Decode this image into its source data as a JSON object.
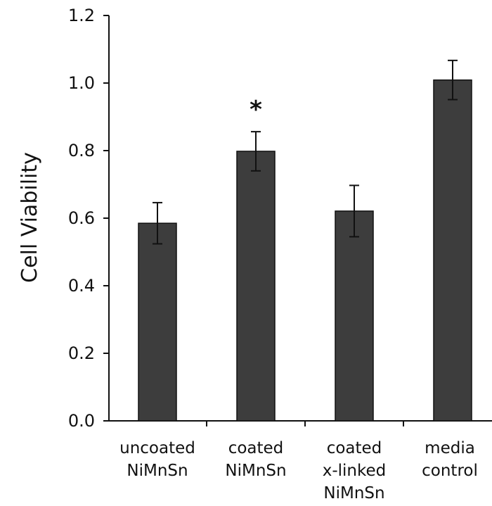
{
  "chart_data": {
    "type": "bar",
    "title": "",
    "xlabel": "",
    "ylabel": "Cell Viability",
    "ylim": [
      0,
      1.2
    ],
    "yticks": [
      "0.0",
      "0.2",
      "0.4",
      "0.6",
      "0.8",
      "1.0",
      "1.2"
    ],
    "categories": [
      [
        "uncoated",
        "NiMnSn"
      ],
      [
        "coated",
        "NiMnSn"
      ],
      [
        "coated",
        "x-linked",
        "NiMnSn"
      ],
      [
        "media",
        "control"
      ]
    ],
    "values": [
      0.585,
      0.798,
      0.621,
      1.009
    ],
    "errors": [
      0.061,
      0.058,
      0.076,
      0.058
    ],
    "annotations": [
      "",
      "*",
      "",
      ""
    ],
    "grid": false,
    "legend": "none",
    "colors": {
      "bar": "#3d3d3d",
      "bar_edge": "#111111",
      "axis": "#111111",
      "text": "#111111"
    }
  }
}
